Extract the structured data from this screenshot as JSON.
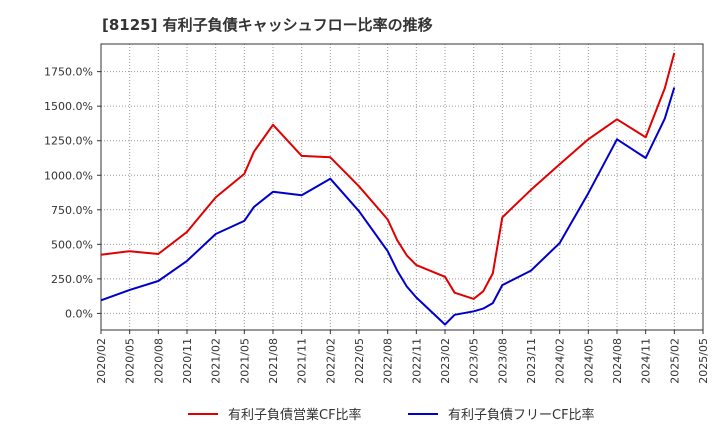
{
  "title": "[8125]  有利子負債キャッシュフロー比率の推移",
  "chart_data": {
    "type": "line",
    "x": [
      "2020/02",
      "2020/05",
      "2020/08",
      "2020/11",
      "2021/02",
      "2021/05",
      "2021/08",
      "2021/11",
      "2022/02",
      "2022/05",
      "2022/08",
      "2022/11",
      "2023/02",
      "2023/05",
      "2023/08",
      "2023/11",
      "2024/02",
      "2024/05",
      "2024/08",
      "2024/11",
      "2025/02"
    ],
    "x_ticks": [
      "2020/02",
      "2020/05",
      "2020/08",
      "2020/11",
      "2021/02",
      "2021/05",
      "2021/08",
      "2021/11",
      "2022/02",
      "2022/05",
      "2022/08",
      "2022/11",
      "2023/02",
      "2023/05",
      "2023/08",
      "2023/11",
      "2024/02",
      "2024/05",
      "2024/08",
      "2024/11",
      "2025/02",
      "2025/05"
    ],
    "y_ticks": [
      "0.0%",
      "250.0%",
      "500.0%",
      "750.0%",
      "1000.0%",
      "1250.0%",
      "1500.0%",
      "1750.0%"
    ],
    "y_tick_values": [
      0,
      250,
      500,
      750,
      1000,
      1250,
      1500,
      1750
    ],
    "ylim": [
      -120,
      1950
    ],
    "grid": true,
    "legend_position": "bottom",
    "series": [
      {
        "name": "有利子負債営業CF比率",
        "color": "#e00000",
        "points": [
          [
            "2020/02",
            425
          ],
          [
            "2020/05",
            450
          ],
          [
            "2020/08",
            430
          ],
          [
            "2020/11",
            590
          ],
          [
            "2021/02",
            840
          ],
          [
            "2021/05",
            1010
          ],
          [
            "2021/06",
            1170
          ],
          [
            "2021/08",
            1365
          ],
          [
            "2021/11",
            1140
          ],
          [
            "2022/02",
            1130
          ],
          [
            "2022/05",
            920
          ],
          [
            "2022/08",
            680
          ],
          [
            "2022/09",
            530
          ],
          [
            "2022/10",
            420
          ],
          [
            "2022/11",
            350
          ],
          [
            "2023/02",
            265
          ],
          [
            "2023/03",
            150
          ],
          [
            "2023/05",
            105
          ],
          [
            "2023/06",
            160
          ],
          [
            "2023/07",
            290
          ],
          [
            "2023/08",
            695
          ],
          [
            "2023/11",
            895
          ],
          [
            "2024/02",
            1080
          ],
          [
            "2024/05",
            1260
          ],
          [
            "2024/08",
            1405
          ],
          [
            "2024/11",
            1275
          ],
          [
            "2025/01",
            1630
          ],
          [
            "2025/02",
            1885
          ]
        ]
      },
      {
        "name": "有利子負債フリーCF比率",
        "color": "#0000cc",
        "points": [
          [
            "2020/02",
            95
          ],
          [
            "2020/05",
            170
          ],
          [
            "2020/08",
            235
          ],
          [
            "2020/11",
            380
          ],
          [
            "2021/02",
            575
          ],
          [
            "2021/05",
            670
          ],
          [
            "2021/06",
            770
          ],
          [
            "2021/08",
            880
          ],
          [
            "2021/11",
            855
          ],
          [
            "2022/02",
            975
          ],
          [
            "2022/05",
            740
          ],
          [
            "2022/08",
            450
          ],
          [
            "2022/09",
            310
          ],
          [
            "2022/10",
            195
          ],
          [
            "2022/11",
            115
          ],
          [
            "2023/02",
            -80
          ],
          [
            "2023/03",
            -10
          ],
          [
            "2023/05",
            15
          ],
          [
            "2023/06",
            35
          ],
          [
            "2023/07",
            75
          ],
          [
            "2023/08",
            205
          ],
          [
            "2023/11",
            310
          ],
          [
            "2024/02",
            510
          ],
          [
            "2024/05",
            870
          ],
          [
            "2024/08",
            1260
          ],
          [
            "2024/11",
            1125
          ],
          [
            "2025/01",
            1410
          ],
          [
            "2025/02",
            1635
          ]
        ]
      }
    ]
  }
}
